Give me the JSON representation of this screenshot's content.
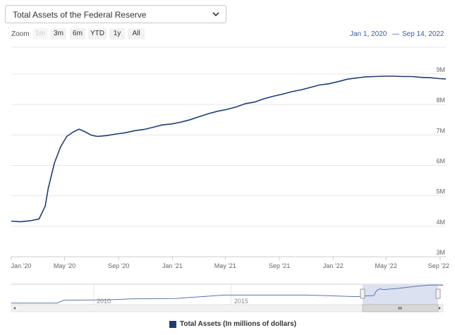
{
  "selector": {
    "label": "Total Assets of the Federal Reserve"
  },
  "zoom": {
    "label": "Zoom",
    "buttons": [
      {
        "label": "1m",
        "disabled": true
      },
      {
        "label": "3m",
        "disabled": false
      },
      {
        "label": "6m",
        "disabled": false
      },
      {
        "label": "YTD",
        "disabled": false
      },
      {
        "label": "1y",
        "disabled": false
      },
      {
        "label": "All",
        "disabled": false
      }
    ]
  },
  "range": {
    "from": "Jan 1, 2020",
    "separator": "—",
    "to": "Sep 14, 2022"
  },
  "colors": {
    "series": "#1f3d73",
    "navigator_fill": "#dbe1f0",
    "grid": "#e6e6e6"
  },
  "chart_data": {
    "type": "line",
    "title": "",
    "xlabel": "",
    "ylabel": "",
    "ylim": [
      3000000,
      9000000
    ],
    "y_ticks": [
      "3M",
      "4M",
      "5M",
      "6M",
      "7M",
      "8M",
      "9M"
    ],
    "x_ticks": [
      "Jan '20",
      "May '20",
      "Sep '20",
      "Jan '21",
      "May '21",
      "Sep '21",
      "Jan '22",
      "May '22",
      "Sep '22"
    ],
    "legend_position": "bottom",
    "series": [
      {
        "name": "Total Assets (In millions of dollars)",
        "x": [
          "2020-01-01",
          "2020-01-22",
          "2020-02-12",
          "2020-03-04",
          "2020-03-18",
          "2020-03-25",
          "2020-04-08",
          "2020-04-22",
          "2020-05-06",
          "2020-05-20",
          "2020-06-03",
          "2020-06-17",
          "2020-07-01",
          "2020-07-15",
          "2020-08-05",
          "2020-08-26",
          "2020-09-16",
          "2020-10-07",
          "2020-10-28",
          "2020-11-18",
          "2020-12-09",
          "2020-12-30",
          "2021-01-20",
          "2021-02-10",
          "2021-03-03",
          "2021-03-24",
          "2021-04-14",
          "2021-05-05",
          "2021-05-26",
          "2021-06-16",
          "2021-07-07",
          "2021-07-28",
          "2021-08-18",
          "2021-09-08",
          "2021-09-29",
          "2021-10-20",
          "2021-11-10",
          "2021-12-01",
          "2021-12-22",
          "2022-01-12",
          "2022-02-02",
          "2022-02-23",
          "2022-03-16",
          "2022-04-06",
          "2022-04-27",
          "2022-05-18",
          "2022-06-08",
          "2022-06-29",
          "2022-07-20",
          "2022-08-10",
          "2022-08-31",
          "2022-09-14"
        ],
        "values": [
          4170000,
          4150000,
          4180000,
          4240000,
          4660000,
          5250000,
          6080000,
          6610000,
          6950000,
          7090000,
          7190000,
          7100000,
          6990000,
          6950000,
          6980000,
          7030000,
          7070000,
          7140000,
          7180000,
          7250000,
          7330000,
          7360000,
          7420000,
          7500000,
          7600000,
          7700000,
          7780000,
          7840000,
          7920000,
          8030000,
          8080000,
          8190000,
          8270000,
          8340000,
          8420000,
          8480000,
          8560000,
          8640000,
          8680000,
          8750000,
          8830000,
          8870000,
          8910000,
          8920000,
          8930000,
          8930000,
          8920000,
          8920000,
          8890000,
          8880000,
          8850000,
          8840000
        ]
      }
    ],
    "navigator": {
      "x_ticks": [
        "2010",
        "2015",
        "2020"
      ]
    }
  }
}
